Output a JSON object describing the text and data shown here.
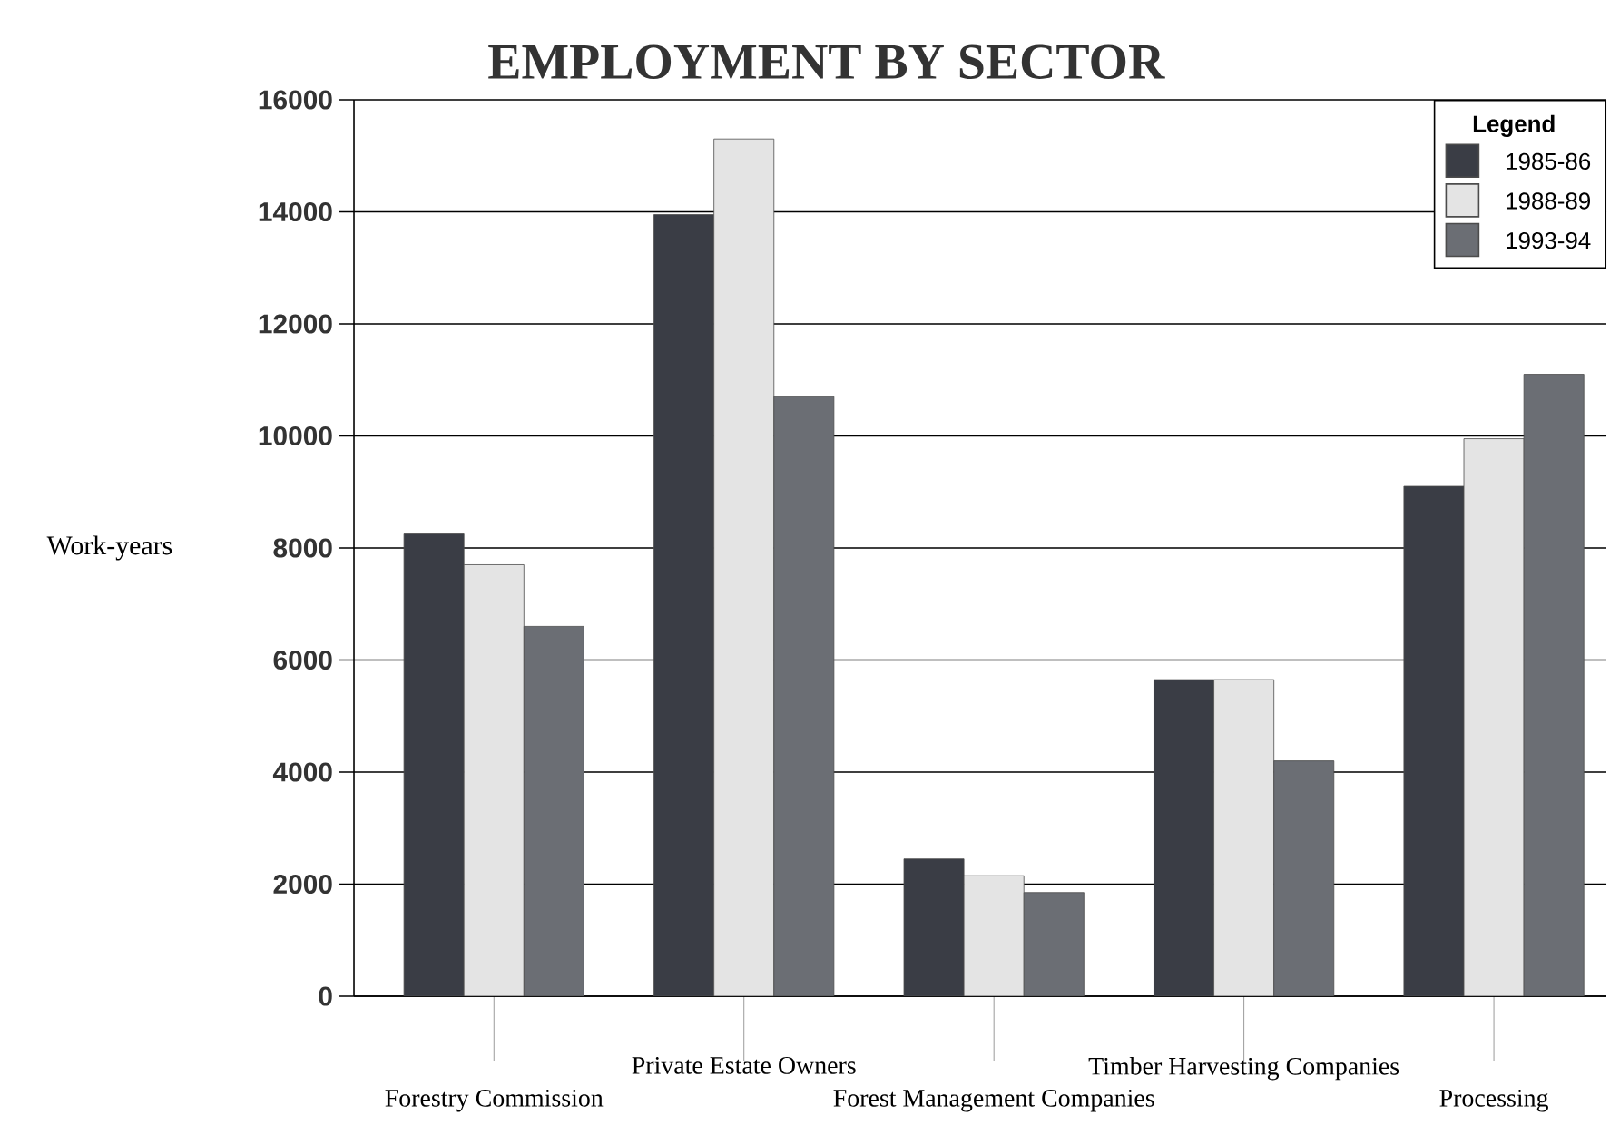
{
  "chart_data": {
    "type": "bar",
    "title": "EMPLOYMENT BY SECTOR",
    "ylabel": "Work-years",
    "legend_title": "Legend",
    "categories": [
      "Forestry Commission",
      "Private Estate Owners",
      "Forest Management Companies",
      "Timber Harvesting Companies",
      "Processing"
    ],
    "series": [
      {
        "name": "1985-86",
        "color": "#3a3d45",
        "values": [
          8250,
          13950,
          2450,
          5650,
          9100
        ]
      },
      {
        "name": "1988-89",
        "color": "#e4e4e4",
        "values": [
          7700,
          15300,
          2150,
          5650,
          9950
        ]
      },
      {
        "name": "1993-94",
        "color": "#6b6e74",
        "values": [
          6600,
          10700,
          1850,
          4200,
          11100
        ]
      }
    ],
    "ylim": [
      0,
      16000
    ],
    "yticks": [
      0,
      2000,
      4000,
      6000,
      8000,
      10000,
      12000,
      14000,
      16000
    ],
    "grid": "y",
    "legend": "top right"
  }
}
